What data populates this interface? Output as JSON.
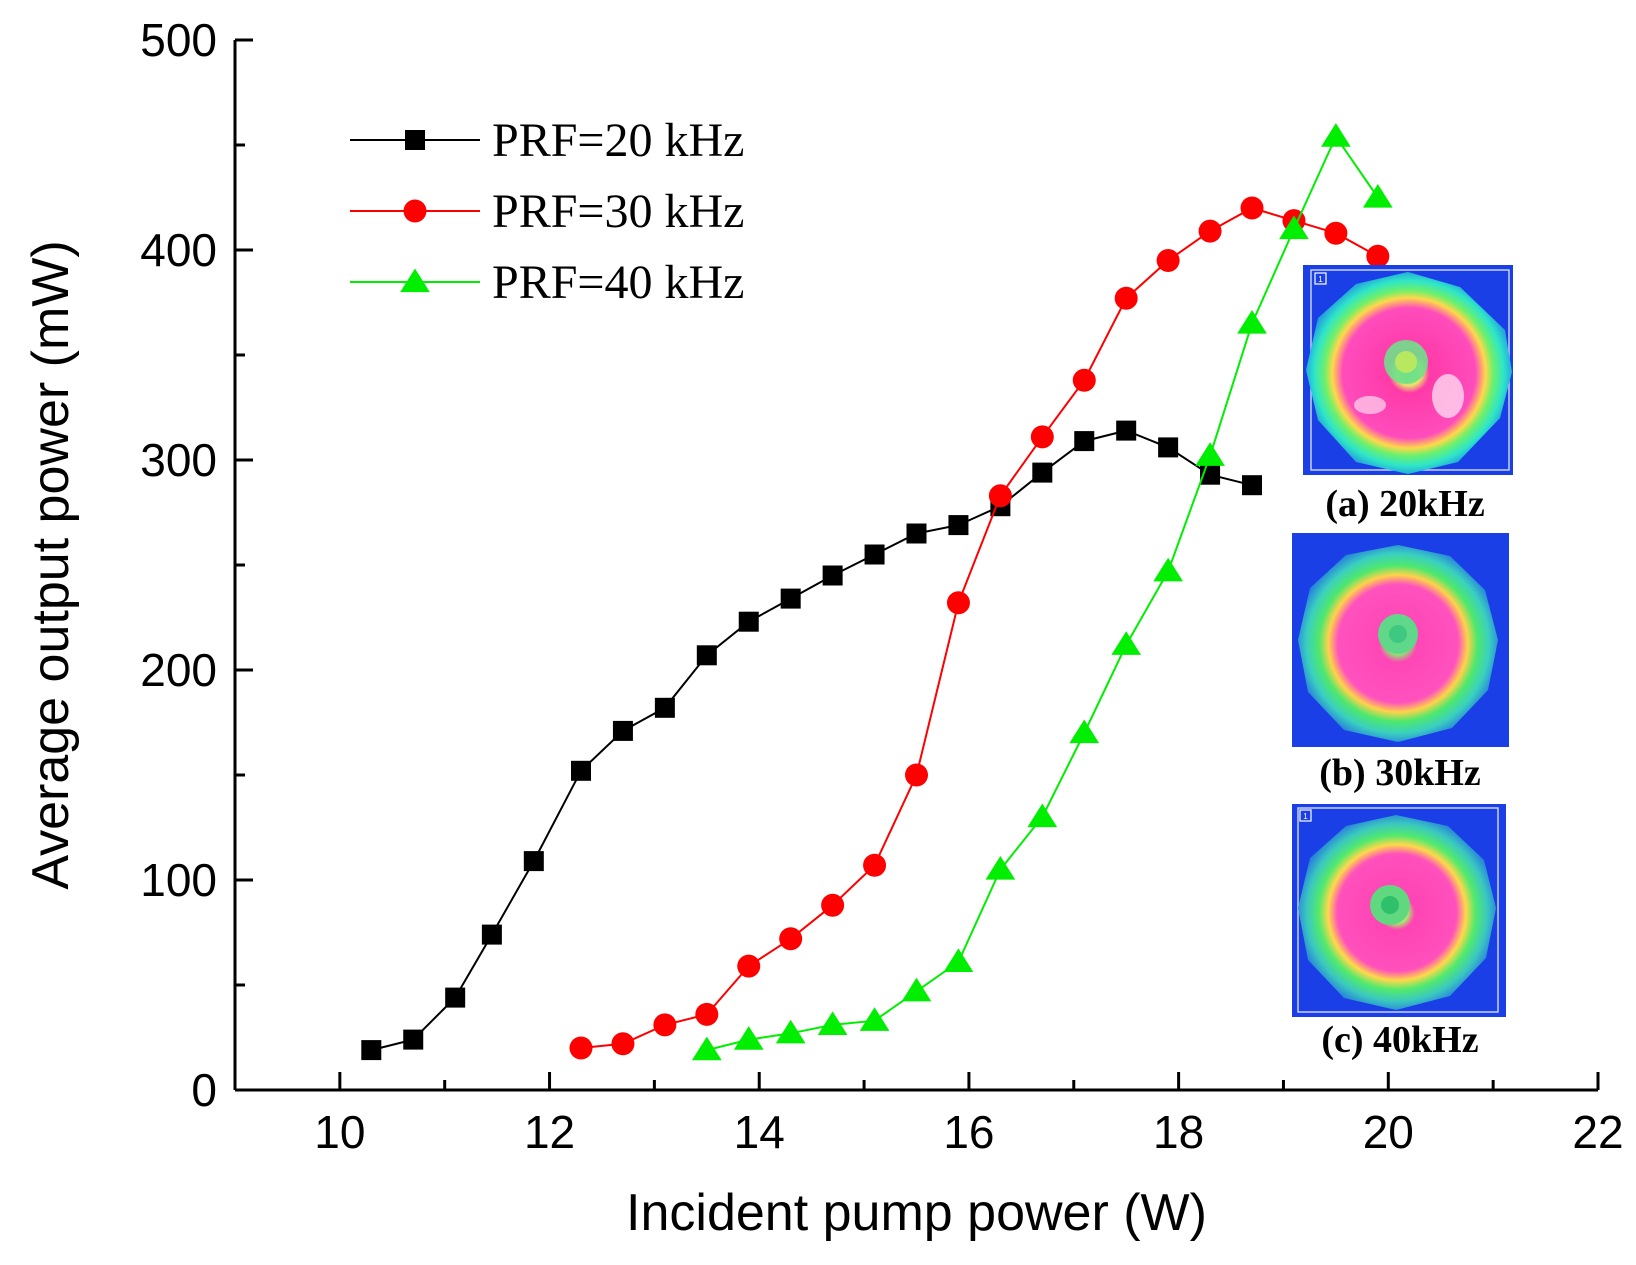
{
  "chart_data": {
    "type": "line",
    "xlabel": "Incident pump power (W)",
    "ylabel": "Average output power (mW)",
    "xlim": [
      9,
      22
    ],
    "ylim": [
      0,
      500
    ],
    "xticks": [
      10,
      12,
      14,
      16,
      18,
      20,
      22
    ],
    "yticks": [
      0,
      100,
      200,
      300,
      400,
      500
    ],
    "legend_position": "top-left",
    "series": [
      {
        "name": "PRF=20 kHz",
        "color": "#000000",
        "marker": "square",
        "x": [
          10.3,
          10.7,
          11.1,
          11.45,
          11.85,
          12.3,
          12.7,
          13.1,
          13.5,
          13.9,
          14.3,
          14.7,
          15.1,
          15.5,
          15.9,
          16.3,
          16.7,
          17.1,
          17.5,
          17.9,
          18.3,
          18.7
        ],
        "y": [
          19,
          24,
          44,
          74,
          109,
          152,
          171,
          182,
          207,
          223,
          234,
          245,
          255,
          265,
          269,
          278,
          294,
          309,
          314,
          306,
          293,
          288
        ]
      },
      {
        "name": "PRF=30 kHz",
        "color": "#ff0000",
        "marker": "circle",
        "x": [
          12.3,
          12.7,
          13.1,
          13.5,
          13.9,
          14.3,
          14.7,
          15.1,
          15.5,
          15.9,
          16.3,
          16.7,
          17.1,
          17.5,
          17.9,
          18.3,
          18.7,
          19.1,
          19.5,
          19.9
        ],
        "y": [
          20,
          22,
          31,
          36,
          59,
          72,
          88,
          107,
          150,
          232,
          283,
          311,
          338,
          377,
          395,
          409,
          420,
          414,
          408,
          397
        ]
      },
      {
        "name": "PRF=40 kHz",
        "color": "#00ee00",
        "marker": "triangle",
        "x": [
          13.5,
          13.9,
          14.3,
          14.7,
          15.1,
          15.5,
          15.9,
          16.3,
          16.7,
          17.1,
          17.5,
          17.9,
          18.3,
          18.7,
          19.1,
          19.5,
          19.9
        ],
        "y": [
          19,
          24,
          27,
          31,
          33,
          47,
          61,
          105,
          130,
          170,
          212,
          247,
          302,
          365,
          410,
          454,
          425
        ]
      }
    ],
    "insets": [
      {
        "caption": "(a) 20kHz",
        "box_label": "1"
      },
      {
        "caption": "(b) 30kHz"
      },
      {
        "caption": "(c) 40kHz",
        "box_label": "1"
      }
    ]
  }
}
